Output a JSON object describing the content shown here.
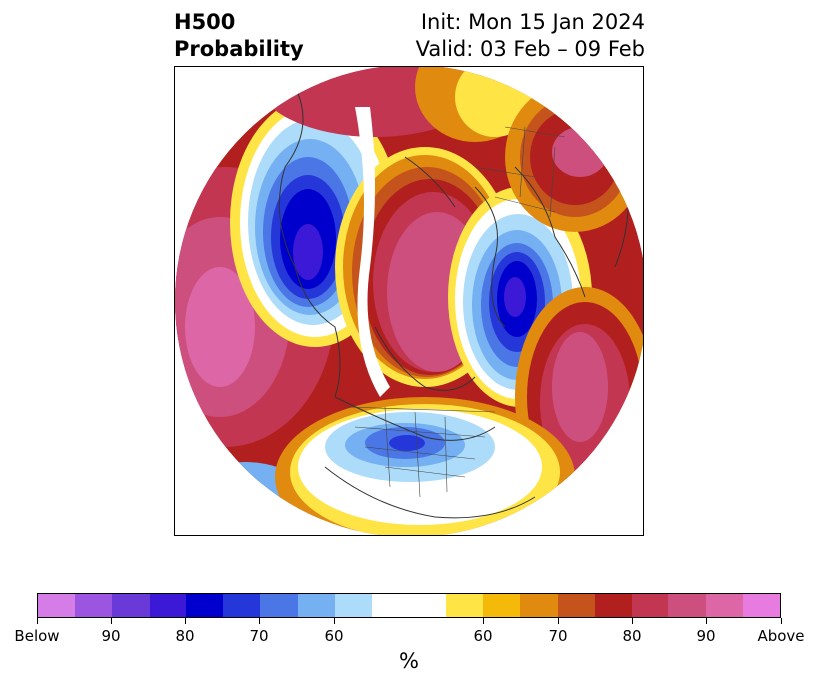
{
  "title": {
    "line1": "H500",
    "line2": "Probability",
    "init": "Init: Mon 15 Jan 2024",
    "valid": "Valid: 03 Feb – 09 Feb"
  },
  "map": {
    "projection": "north-polar-stereographic",
    "features": [
      "coastlines",
      "country-borders",
      "state-borders"
    ],
    "anomalies": [
      {
        "region": "Alaska / Bering Sea",
        "sign": "below"
      },
      {
        "region": "Scandinavia / Eastern Europe",
        "sign": "below"
      },
      {
        "region": "United States",
        "sign": "below"
      },
      {
        "region": "Central Asia / Siberia",
        "sign": "below"
      },
      {
        "region": "North Pacific",
        "sign": "above"
      },
      {
        "region": "Greenland / Canadian Arctic",
        "sign": "above"
      },
      {
        "region": "North Atlantic",
        "sign": "above"
      },
      {
        "region": "Eastern Siberia",
        "sign": "above"
      }
    ]
  },
  "colorbar": {
    "colors": [
      "#d57ce6",
      "#9b55e0",
      "#6a3ad8",
      "#3c19d6",
      "#0000cc",
      "#2637d9",
      "#4a76e6",
      "#74b0f2",
      "#acdcfa",
      "#ffffff",
      "#ffffff",
      "#ffe445",
      "#f5b90a",
      "#e08a10",
      "#c5531c",
      "#b1201f",
      "#c33652",
      "#cd4f7e",
      "#dc66a6",
      "#e87be0"
    ],
    "tick_labels": [
      "Below",
      "90",
      "80",
      "70",
      "60",
      "60",
      "70",
      "80",
      "90",
      "Above"
    ],
    "unit": "%"
  }
}
